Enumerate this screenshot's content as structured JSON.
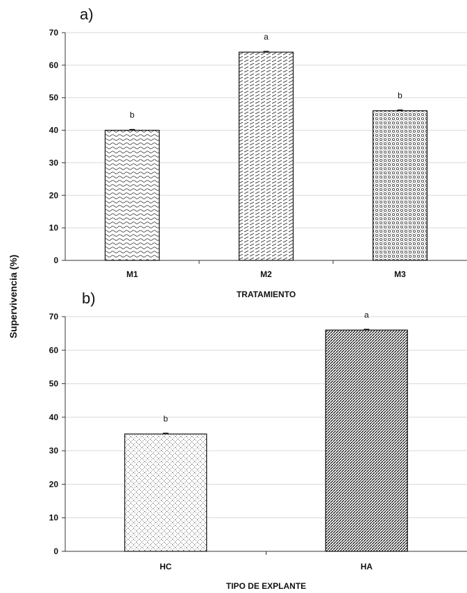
{
  "ylabel": "Supervivencia (%)",
  "chart_data": [
    {
      "type": "bar",
      "panel_label": "a)",
      "categories": [
        "M1",
        "M2",
        "M3"
      ],
      "values": [
        40,
        64,
        46
      ],
      "significance": [
        "b",
        "a",
        "b"
      ],
      "xlabel": "TRATAMIENTO",
      "ylim": [
        0,
        70
      ],
      "yticks": [
        0,
        10,
        20,
        30,
        40,
        50,
        60,
        70
      ],
      "grid": true,
      "bar_fills": [
        "wave",
        "dash",
        "dots"
      ]
    },
    {
      "type": "bar",
      "panel_label": "b)",
      "categories": [
        "HC",
        "HA"
      ],
      "values": [
        35,
        66
      ],
      "significance": [
        "b",
        "a"
      ],
      "xlabel": "TIPO DE EXPLANTE",
      "ylim": [
        0,
        70
      ],
      "yticks": [
        0,
        10,
        20,
        30,
        40,
        50,
        60,
        70
      ],
      "grid": true,
      "bar_fills": [
        "checker",
        "diagonal"
      ]
    }
  ]
}
